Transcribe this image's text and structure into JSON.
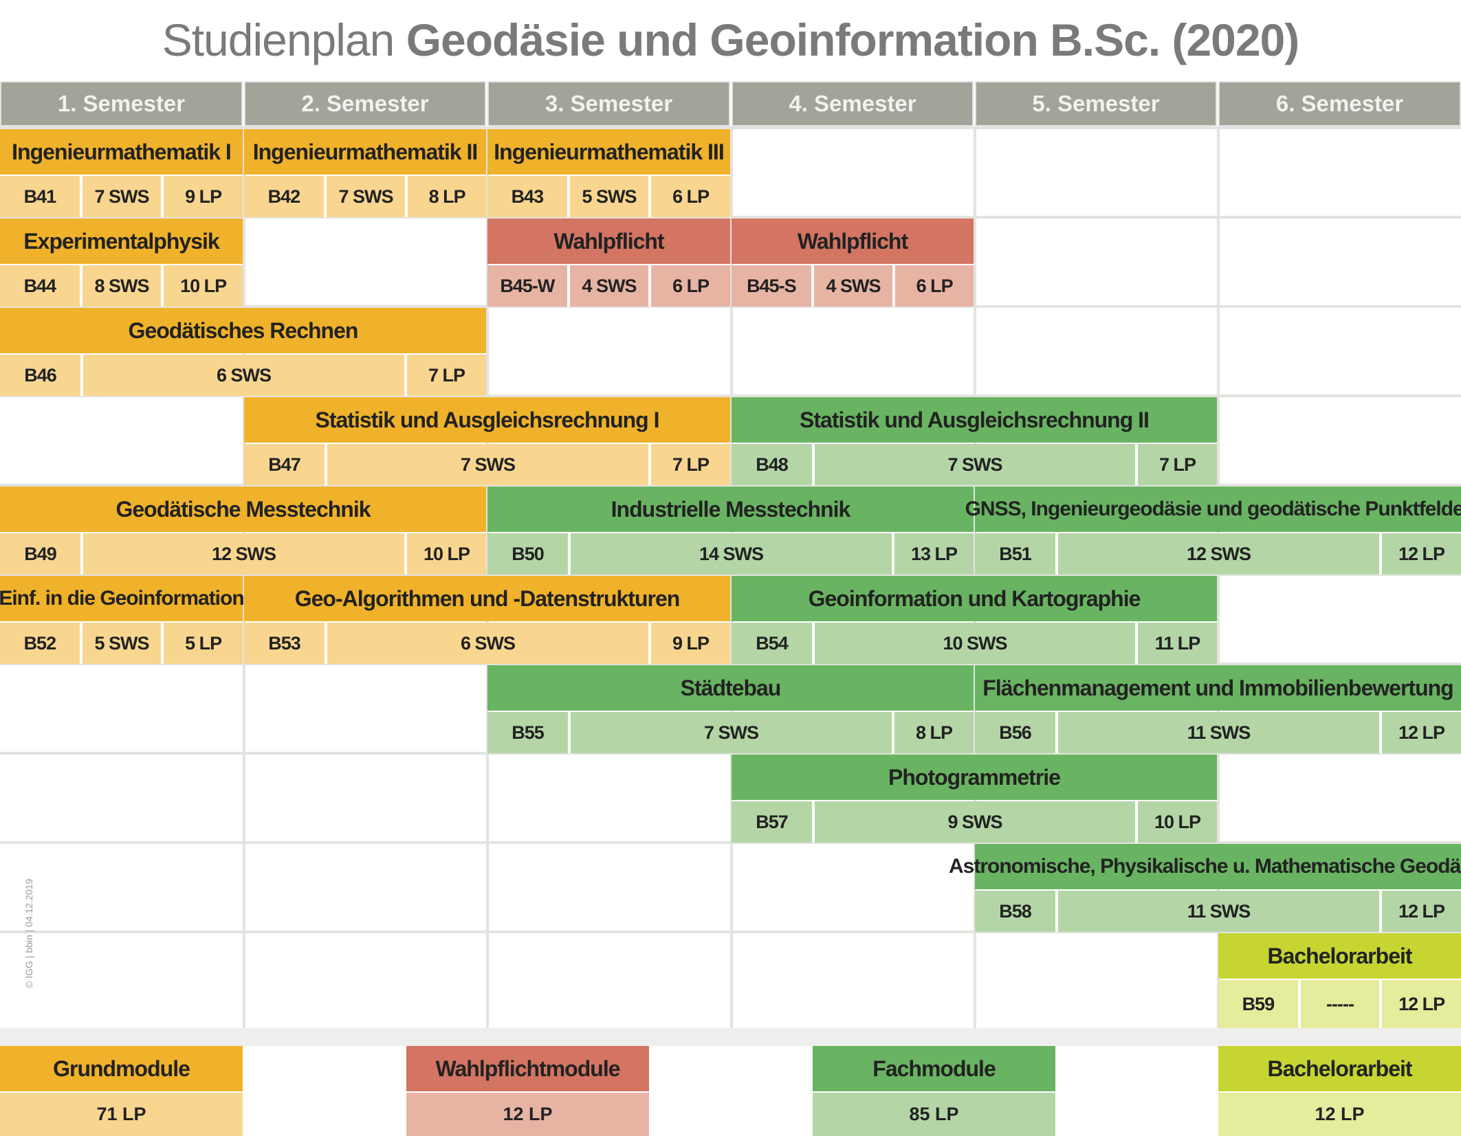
{
  "title": {
    "light": "Studienplan",
    "bold": "Geodäsie und Geoinformation B.Sc. (2020)"
  },
  "semesters": [
    "1. Semester",
    "2. Semester",
    "3. Semester",
    "4. Semester",
    "5. Semester",
    "6. Semester"
  ],
  "modules": [
    {
      "kind": "g",
      "name": "Ingenieurmathematik I",
      "code": "B41",
      "sws": "7 SWS",
      "lp": "9 LP"
    },
    {
      "kind": "g",
      "name": "Ingenieurmathematik II",
      "code": "B42",
      "sws": "7 SWS",
      "lp": "8 LP"
    },
    {
      "kind": "g",
      "name": "Ingenieurmathematik III",
      "code": "B43",
      "sws": "5 SWS",
      "lp": "6 LP"
    },
    {
      "kind": "g",
      "name": "Experimentalphysik",
      "code": "B44",
      "sws": "8 SWS",
      "lp": "10 LP"
    },
    {
      "kind": "w",
      "name": "Wahlpflicht",
      "code": "B45-W",
      "sws": "4 SWS",
      "lp": "6 LP"
    },
    {
      "kind": "w",
      "name": "Wahlpflicht",
      "code": "B45-S",
      "sws": "4 SWS",
      "lp": "6 LP"
    },
    {
      "kind": "g",
      "name": "Geodätisches Rechnen",
      "code": "B46",
      "sws": "6 SWS",
      "lp": "7 LP"
    },
    {
      "kind": "g",
      "name": "Statistik und Ausgleichsrechnung I",
      "code": "B47",
      "sws": "7 SWS",
      "lp": "7 LP"
    },
    {
      "kind": "f",
      "name": "Statistik und Ausgleichsrechnung II",
      "code": "B48",
      "sws": "7 SWS",
      "lp": "7 LP"
    },
    {
      "kind": "g",
      "name": "Geodätische Messtechnik",
      "code": "B49",
      "sws": "12 SWS",
      "lp": "10 LP"
    },
    {
      "kind": "f",
      "name": "Industrielle Messtechnik",
      "code": "B50",
      "sws": "14 SWS",
      "lp": "13 LP"
    },
    {
      "kind": "f",
      "name": "GNSS, Ingenieurgeodäsie und geodätische Punktfelder",
      "code": "B51",
      "sws": "12 SWS",
      "lp": "12 LP"
    },
    {
      "kind": "g",
      "name": "Einf. in die Geoinformation",
      "code": "B52",
      "sws": "5 SWS",
      "lp": "5 LP"
    },
    {
      "kind": "g",
      "name": "Geo-Algorithmen und -Datenstrukturen",
      "code": "B53",
      "sws": "6 SWS",
      "lp": "9 LP"
    },
    {
      "kind": "f",
      "name": "Geoinformation und Kartographie",
      "code": "B54",
      "sws": "10 SWS",
      "lp": "11 LP"
    },
    {
      "kind": "f",
      "name": "Städtebau",
      "code": "B55",
      "sws": "7 SWS",
      "lp": "8 LP"
    },
    {
      "kind": "f",
      "name": "Flächenmanagement und Immobilienbewertung",
      "code": "B56",
      "sws": "11 SWS",
      "lp": "12 LP"
    },
    {
      "kind": "f",
      "name": "Photogrammetrie",
      "code": "B57",
      "sws": "9 SWS",
      "lp": "10 LP"
    },
    {
      "kind": "f",
      "name": "Astronomische, Physikalische u. Mathematische Geodäsie",
      "code": "B58",
      "sws": "11 SWS",
      "lp": "12 LP"
    },
    {
      "kind": "b",
      "name": "Bachelorarbeit",
      "code": "B59",
      "sws": "-----",
      "lp": "12 LP"
    }
  ],
  "legend": [
    {
      "kind": "g",
      "name": "Grundmodule",
      "value": "71 LP"
    },
    {
      "kind": "w",
      "name": "Wahlpflichtmodule",
      "value": "12 LP"
    },
    {
      "kind": "f",
      "name": "Fachmodule",
      "value": "85 LP"
    },
    {
      "kind": "b",
      "name": "Bachelorarbeit",
      "value": "12 LP"
    }
  ],
  "credit": "© IGG | bbin | 04.12.2019",
  "colors": {
    "grundmodule": "#f0b22a",
    "grundmodule_light": "#f8d690",
    "wahlpflicht": "#d37562",
    "wahlpflicht_light": "#e7b4a4",
    "fachmodule": "#69b462",
    "fachmodule_light": "#b4d6a6",
    "bachelorarbeit": "#c7d532",
    "bachelorarbeit_light": "#e5ec9c",
    "header": "#a3a39a",
    "title_text": "#7a7a78"
  }
}
